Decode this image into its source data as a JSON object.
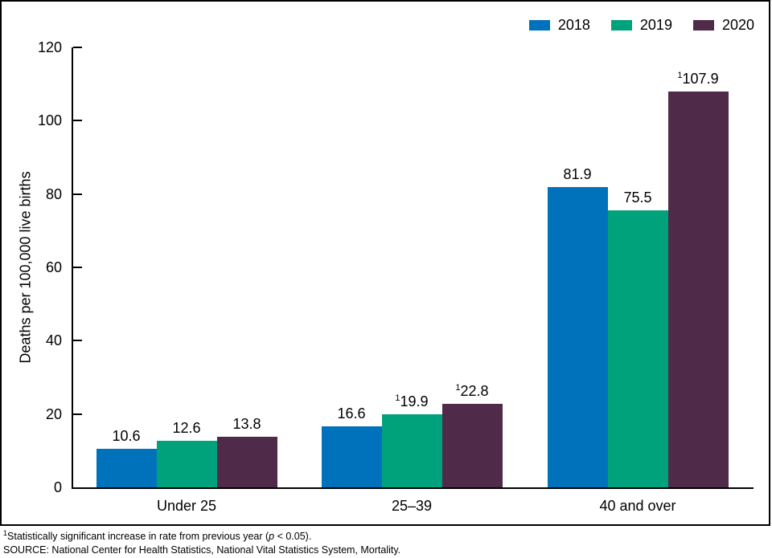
{
  "chart_data": {
    "type": "bar",
    "categories": [
      "Under 25",
      "25–39",
      "40 and over"
    ],
    "series": [
      {
        "name": "2018",
        "color": "#0072BC",
        "values": [
          10.6,
          16.6,
          81.9
        ],
        "significant": [
          false,
          false,
          false
        ]
      },
      {
        "name": "2019",
        "color": "#00A27C",
        "values": [
          12.6,
          19.9,
          75.5
        ],
        "significant": [
          false,
          true,
          false
        ]
      },
      {
        "name": "2020",
        "color": "#4F2A49",
        "values": [
          13.8,
          22.8,
          107.9
        ],
        "significant": [
          false,
          true,
          true
        ]
      }
    ],
    "title": "",
    "xlabel": "",
    "ylabel": "Deaths per 100,000 live births",
    "ylim": [
      0,
      120
    ],
    "yticks": [
      0,
      20,
      40,
      60,
      80,
      100,
      120
    ],
    "grid": false,
    "legend_position": "top-right",
    "superscript_marker": "1"
  },
  "footnotes": {
    "sig_sup": "1",
    "sig_before_p": "Statistically significant increase in rate from previous year (",
    "sig_p": "p",
    "sig_after_p": " < 0.05).",
    "source": "SOURCE: National Center for Health Statistics, National Vital Statistics System, Mortality."
  }
}
